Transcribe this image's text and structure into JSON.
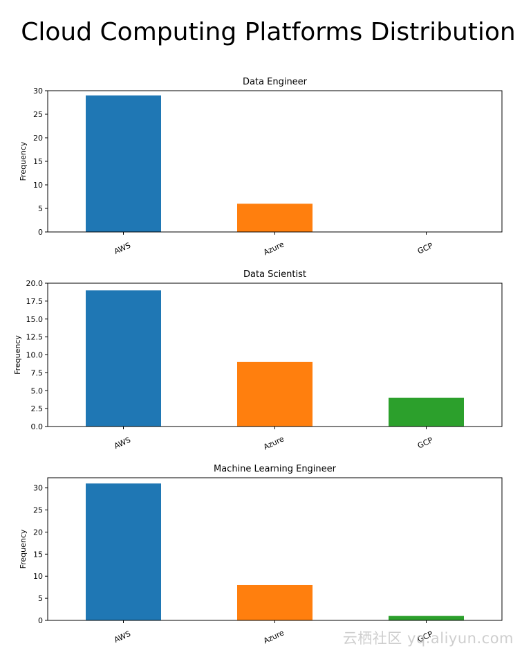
{
  "chart_data": {
    "type": "bar",
    "suptitle": "Cloud Computing Platforms Distribution",
    "colors": [
      "#1f77b4",
      "#ff7f0e",
      "#2ca02c"
    ],
    "subplots": [
      {
        "title": "Data Engineer",
        "ylabel": "Frequency",
        "categories": [
          "AWS",
          "Azure",
          "GCP"
        ],
        "values": [
          29,
          6,
          0
        ],
        "ylim": [
          0,
          30
        ],
        "yticks": [
          "0",
          "5",
          "10",
          "15",
          "20",
          "25",
          "30"
        ],
        "ytick_values": [
          0,
          5,
          10,
          15,
          20,
          25,
          30
        ]
      },
      {
        "title": "Data Scientist",
        "ylabel": "Frequency",
        "categories": [
          "AWS",
          "Azure",
          "GCP"
        ],
        "values": [
          19,
          9,
          4
        ],
        "ylim": [
          0,
          20
        ],
        "yticks": [
          "0.0",
          "2.5",
          "5.0",
          "7.5",
          "10.0",
          "12.5",
          "15.0",
          "17.5",
          "20.0"
        ],
        "ytick_values": [
          0,
          2.5,
          5,
          7.5,
          10,
          12.5,
          15,
          17.5,
          20
        ]
      },
      {
        "title": "Machine Learning Engineer",
        "ylabel": "Frequency",
        "categories": [
          "AWS",
          "Azure",
          "GCP"
        ],
        "values": [
          31,
          8,
          1
        ],
        "ylim": [
          0,
          32.3
        ],
        "yticks": [
          "0",
          "5",
          "10",
          "15",
          "20",
          "25",
          "30"
        ],
        "ytick_values": [
          0,
          5,
          10,
          15,
          20,
          25,
          30
        ]
      }
    ]
  },
  "watermark": "云栖社区 yq.aliyun.com"
}
